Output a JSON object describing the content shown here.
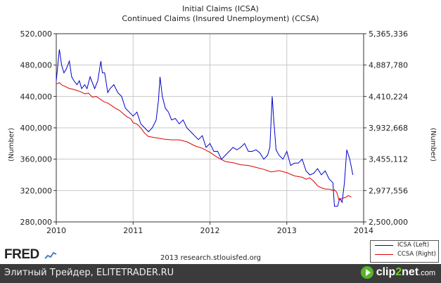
{
  "chart_data": {
    "type": "line",
    "title": "Initial Claims (ICSA)",
    "subtitle": "Continued Claims (Insured Unemployment) (CCSA)",
    "x_ticks": [
      "2010",
      "2011",
      "2012",
      "2013",
      "2014"
    ],
    "xlim": [
      2010.0,
      2014.0
    ],
    "y_left": {
      "label": "(Number)",
      "ylim": [
        280000,
        520000
      ],
      "ticks": [
        "280,000",
        "320,000",
        "360,000",
        "400,000",
        "440,000",
        "480,000",
        "520,000"
      ]
    },
    "y_right": {
      "label": "(Number)",
      "ylim": [
        2500000,
        5365336
      ],
      "ticks": [
        "2,500,000",
        "2,977,556",
        "3,455,112",
        "3,932,668",
        "4,410,224",
        "4,887,780",
        "5,365,336"
      ]
    },
    "grid": true,
    "legend_position": "bottom-right",
    "series": [
      {
        "name": "ICSA (Left)",
        "axis": "left",
        "color": "#0000cc",
        "x": [
          2010.0,
          2010.04,
          2010.07,
          2010.1,
          2010.13,
          2010.17,
          2010.2,
          2010.23,
          2010.27,
          2010.3,
          2010.33,
          2010.37,
          2010.4,
          2010.44,
          2010.5,
          2010.54,
          2010.58,
          2010.6,
          2010.63,
          2010.67,
          2010.7,
          2010.75,
          2010.8,
          2010.85,
          2010.9,
          2010.95,
          2011.0,
          2011.05,
          2011.1,
          2011.15,
          2011.2,
          2011.25,
          2011.3,
          2011.33,
          2011.35,
          2011.38,
          2011.42,
          2011.46,
          2011.5,
          2011.55,
          2011.6,
          2011.65,
          2011.7,
          2011.75,
          2011.8,
          2011.85,
          2011.9,
          2011.95,
          2012.0,
          2012.05,
          2012.1,
          2012.15,
          2012.2,
          2012.25,
          2012.3,
          2012.35,
          2012.4,
          2012.45,
          2012.5,
          2012.55,
          2012.6,
          2012.65,
          2012.7,
          2012.75,
          2012.78,
          2012.81,
          2012.83,
          2012.86,
          2012.9,
          2012.95,
          2013.0,
          2013.05,
          2013.1,
          2013.15,
          2013.2,
          2013.25,
          2013.3,
          2013.35,
          2013.4,
          2013.45,
          2013.5,
          2013.55,
          2013.6,
          2013.62,
          2013.66,
          2013.69,
          2013.72,
          2013.75,
          2013.78,
          2013.82,
          2013.86
        ],
        "values": [
          460000,
          500000,
          480000,
          470000,
          475000,
          485000,
          465000,
          460000,
          455000,
          460000,
          450000,
          455000,
          450000,
          465000,
          450000,
          460000,
          485000,
          470000,
          470000,
          445000,
          450000,
          455000,
          445000,
          440000,
          425000,
          420000,
          415000,
          420000,
          405000,
          400000,
          395000,
          400000,
          410000,
          435000,
          465000,
          440000,
          425000,
          420000,
          410000,
          412000,
          405000,
          410000,
          400000,
          395000,
          390000,
          385000,
          390000,
          375000,
          380000,
          370000,
          370000,
          360000,
          365000,
          370000,
          375000,
          372000,
          375000,
          380000,
          370000,
          370000,
          372000,
          368000,
          360000,
          365000,
          375000,
          440000,
          410000,
          372000,
          365000,
          360000,
          370000,
          352000,
          355000,
          355000,
          360000,
          345000,
          340000,
          342000,
          348000,
          340000,
          345000,
          335000,
          330000,
          300000,
          300000,
          310000,
          305000,
          330000,
          372000,
          360000,
          340000
        ]
      },
      {
        "name": "CCSA (Right)",
        "axis": "right",
        "color": "#dd0000",
        "x": [
          2010.0,
          2010.04,
          2010.08,
          2010.12,
          2010.17,
          2010.22,
          2010.27,
          2010.32,
          2010.37,
          2010.42,
          2010.47,
          2010.52,
          2010.57,
          2010.62,
          2010.67,
          2010.72,
          2010.77,
          2010.82,
          2010.87,
          2010.92,
          2010.97,
          2011.0,
          2011.05,
          2011.1,
          2011.15,
          2011.2,
          2011.3,
          2011.4,
          2011.5,
          2011.6,
          2011.7,
          2011.8,
          2011.9,
          2012.0,
          2012.1,
          2012.2,
          2012.3,
          2012.4,
          2012.5,
          2012.6,
          2012.7,
          2012.8,
          2012.9,
          2013.0,
          2013.1,
          2013.2,
          2013.25,
          2013.3,
          2013.35,
          2013.4,
          2013.45,
          2013.5,
          2013.55,
          2013.6,
          2013.62,
          2013.65,
          2013.68,
          2013.72,
          2013.76,
          2013.8,
          2013.84
        ],
        "values": [
          4600000,
          4620000,
          4580000,
          4560000,
          4530000,
          4520000,
          4500000,
          4480000,
          4450000,
          4460000,
          4400000,
          4410000,
          4370000,
          4330000,
          4310000,
          4270000,
          4230000,
          4200000,
          4150000,
          4100000,
          4070000,
          4010000,
          3990000,
          3930000,
          3850000,
          3800000,
          3780000,
          3760000,
          3750000,
          3750000,
          3720000,
          3660000,
          3620000,
          3560000,
          3480000,
          3420000,
          3400000,
          3370000,
          3360000,
          3330000,
          3300000,
          3260000,
          3280000,
          3250000,
          3200000,
          3180000,
          3150000,
          3170000,
          3120000,
          3050000,
          3020000,
          3000000,
          3000000,
          2980000,
          2990000,
          2950000,
          2830000,
          2860000,
          2870000,
          2900000,
          2880000
        ]
      }
    ]
  },
  "branding": {
    "fred_logo": "FRED",
    "credit": "2013 research.stlouisfed.org"
  },
  "footer": {
    "text": "Элитный Трейдер, ELITETRADER.RU",
    "logo_pre": "clip",
    "logo_mid": "2",
    "logo_post": "net",
    "logo_suffix": ".com"
  }
}
